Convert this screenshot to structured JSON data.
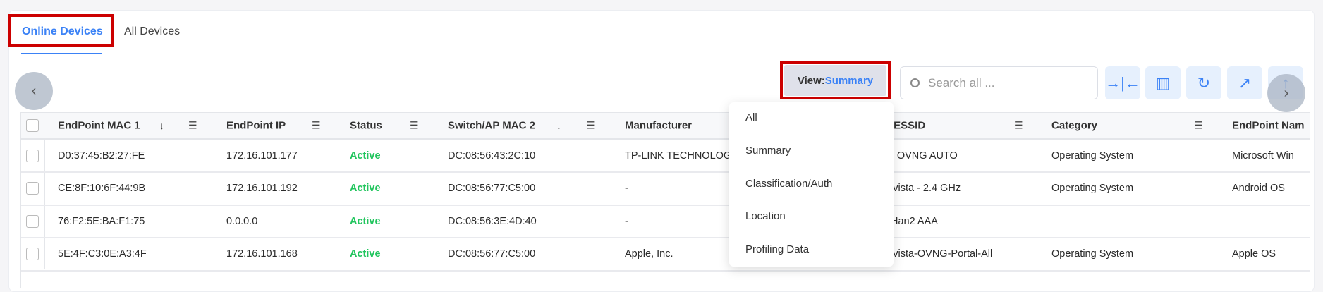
{
  "tabs": [
    {
      "label": "Online Devices",
      "active": true
    },
    {
      "label": "All Devices",
      "active": false
    }
  ],
  "toolbar": {
    "view_prefix": "View:",
    "view_value": "Summary",
    "search_placeholder": "Search all ...",
    "icons": [
      "collapse-columns-icon",
      "column-layout-icon",
      "refresh-icon",
      "export-icon",
      "upload-icon"
    ]
  },
  "accent_color": "#3b82f6",
  "status_color": "#22c55e",
  "highlight_color": "#cc0000",
  "table": {
    "headers": [
      "EndPoint MAC 1",
      "EndPoint IP",
      "Status",
      "Switch/AP MAC 2",
      "Manufacturer",
      "/ESSID",
      "Category",
      "EndPoint Nam"
    ],
    "rows": [
      [
        "D0:37:45:B2:27:FE",
        "172.16.101.177",
        "Active",
        "DC:08:56:43:2C:10",
        "TP-LINK TECHNOLOG",
        "- OVNG AUTO",
        "Operating System",
        "Microsoft Win"
      ],
      [
        "CE:8F:10:6F:44:9B",
        "172.16.101.192",
        "Active",
        "DC:08:56:77:C5:00",
        "-",
        "ivista - 2.4 GHz",
        "Operating System",
        "Android OS"
      ],
      [
        "76:F2:5E:BA:F1:75",
        "0.0.0.0",
        "Active",
        "DC:08:56:3E:4D:40",
        "-",
        "Han2 AAA",
        "",
        ""
      ],
      [
        "5E:4F:C3:0E:A3:4F",
        "172.16.101.168",
        "Active",
        "DC:08:56:77:C5:00",
        "Apple, Inc.",
        "ivista-OVNG-Portal-All",
        "Operating System",
        "Apple OS"
      ]
    ]
  },
  "view_menu": [
    "All",
    "Summary",
    "Classification/Auth",
    "Location",
    "Profiling Data"
  ]
}
